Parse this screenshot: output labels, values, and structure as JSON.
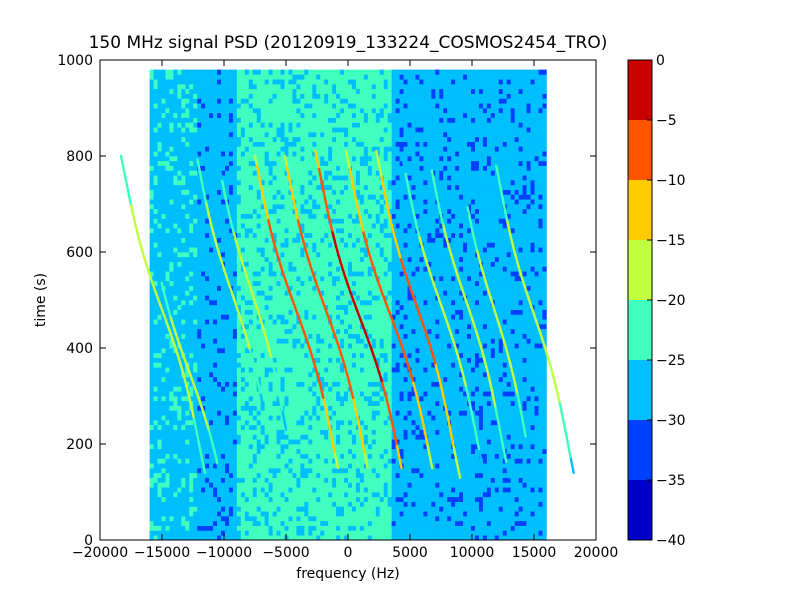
{
  "chart_data": {
    "type": "heatmap",
    "title": "150 MHz signal PSD (20120919_133224_COSMOS2454_TRO)",
    "xlabel": "frequency (Hz)",
    "ylabel": "time (s)",
    "xlim": [
      -20000,
      20000
    ],
    "ylim": [
      0,
      1000
    ],
    "x_ticks": [
      -20000,
      -15000,
      -10000,
      -5000,
      0,
      5000,
      10000,
      15000,
      20000
    ],
    "y_ticks": [
      0,
      200,
      400,
      600,
      800,
      1000
    ],
    "data_extent": {
      "x": [
        -16000,
        16000
      ],
      "y": [
        0,
        980
      ]
    },
    "background_regions": [
      {
        "x": [
          -16000,
          -12200
        ],
        "level": -26.5
      },
      {
        "x": [
          -12200,
          -9000
        ],
        "level": -28
      },
      {
        "x": [
          -9000,
          3400
        ],
        "level": -23.5
      },
      {
        "x": [
          3400,
          16000
        ],
        "level": -28
      }
    ],
    "doppler_traces": [
      {
        "center": -15000,
        "time_center": 480,
        "time_range": [
          140,
          800
        ],
        "halfwidth": 3000,
        "peak": -16
      },
      {
        "center": -12800,
        "time_center": 350,
        "time_range": [
          140,
          550
        ],
        "halfwidth": 3000,
        "peak": -17
      },
      {
        "center": -9300,
        "time_center": 510,
        "time_range": [
          280,
          810
        ],
        "halfwidth": 2800,
        "peak": -17
      },
      {
        "center": -7800,
        "time_center": 520,
        "time_range": [
          230,
          780
        ],
        "halfwidth": 2700,
        "peak": -18
      },
      {
        "center": -4200,
        "time_center": 480,
        "time_range": [
          150,
          800
        ],
        "halfwidth": 3000,
        "peak": -7
      },
      {
        "center": -1800,
        "time_center": 480,
        "time_range": [
          150,
          800
        ],
        "halfwidth": 3000,
        "peak": -7
      },
      {
        "center": 1000,
        "time_center": 460,
        "time_range": [
          150,
          810
        ],
        "halfwidth": 3100,
        "peak": -3
      },
      {
        "center": 3400,
        "time_center": 470,
        "time_range": [
          150,
          810
        ],
        "halfwidth": 3100,
        "peak": -8
      },
      {
        "center": 5500,
        "time_center": 490,
        "time_range": [
          130,
          810
        ],
        "halfwidth": 2900,
        "peak": -9
      },
      {
        "center": 7500,
        "time_center": 490,
        "time_range": [
          140,
          800
        ],
        "halfwidth": 2900,
        "peak": -18
      },
      {
        "center": 9500,
        "time_center": 500,
        "time_range": [
          130,
          790
        ],
        "halfwidth": 2800,
        "peak": -17
      },
      {
        "center": 11800,
        "time_center": 480,
        "time_range": [
          190,
          710
        ],
        "halfwidth": 2600,
        "peak": -17
      },
      {
        "center": 15000,
        "time_center": 470,
        "time_range": [
          140,
          800
        ],
        "halfwidth": 2800,
        "peak": -17
      }
    ],
    "colorbar": {
      "levels": [
        -40,
        -35,
        -30,
        -25,
        -20,
        -15,
        -10,
        -5,
        0
      ],
      "tick_labels": [
        "0",
        "−5",
        "−10",
        "−15",
        "−20",
        "−25",
        "−30",
        "−35",
        "−40"
      ],
      "colors": [
        "#0000c8",
        "#0040ff",
        "#00bfff",
        "#40ffbf",
        "#bfff40",
        "#ffcc00",
        "#ff5500",
        "#c80000"
      ]
    },
    "grid": false
  }
}
